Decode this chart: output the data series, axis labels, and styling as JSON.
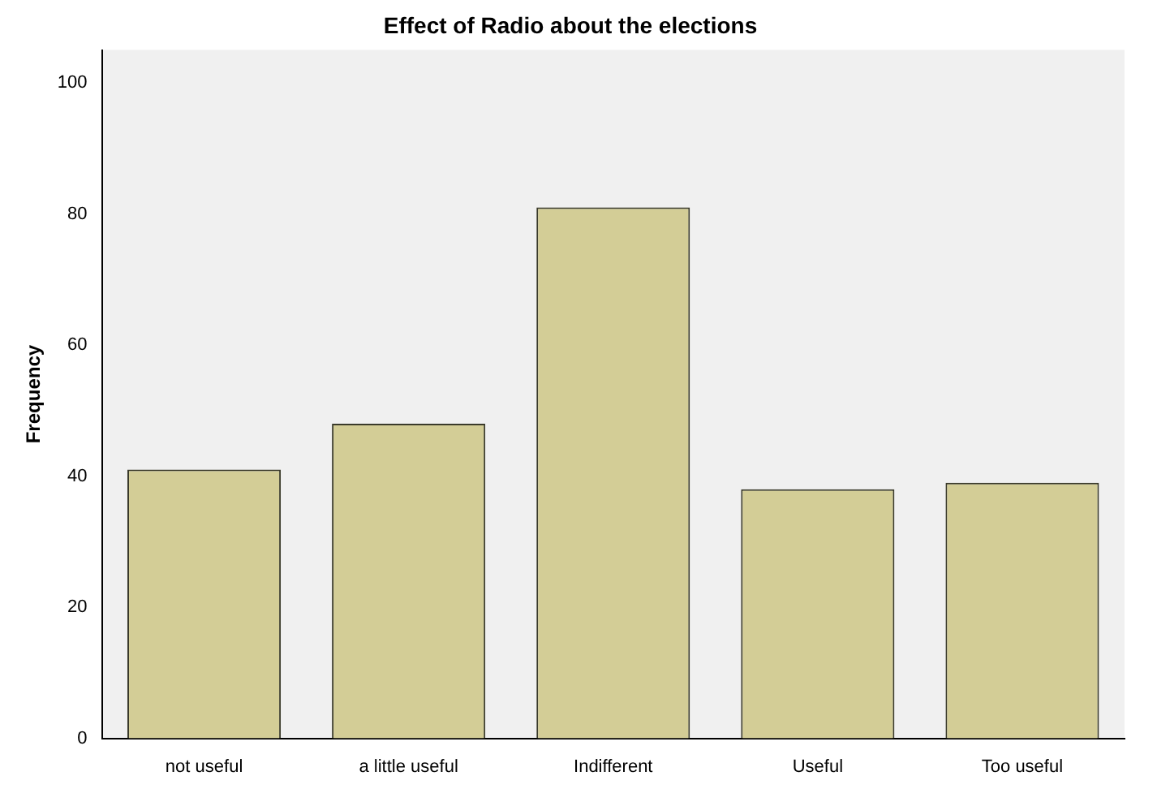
{
  "chart_data": {
    "type": "bar",
    "title": "Effect of Radio about the elections",
    "ylabel": "Frequency",
    "categories": [
      "not useful",
      "a little useful",
      "Indifferent",
      "Useful",
      "Too useful"
    ],
    "values": [
      41,
      48,
      81,
      38,
      39
    ],
    "color": "#d3cd96",
    "ylim": [
      0,
      105
    ],
    "yticks": [
      0,
      20,
      40,
      60,
      80,
      100
    ],
    "grid": false,
    "legend": false
  }
}
